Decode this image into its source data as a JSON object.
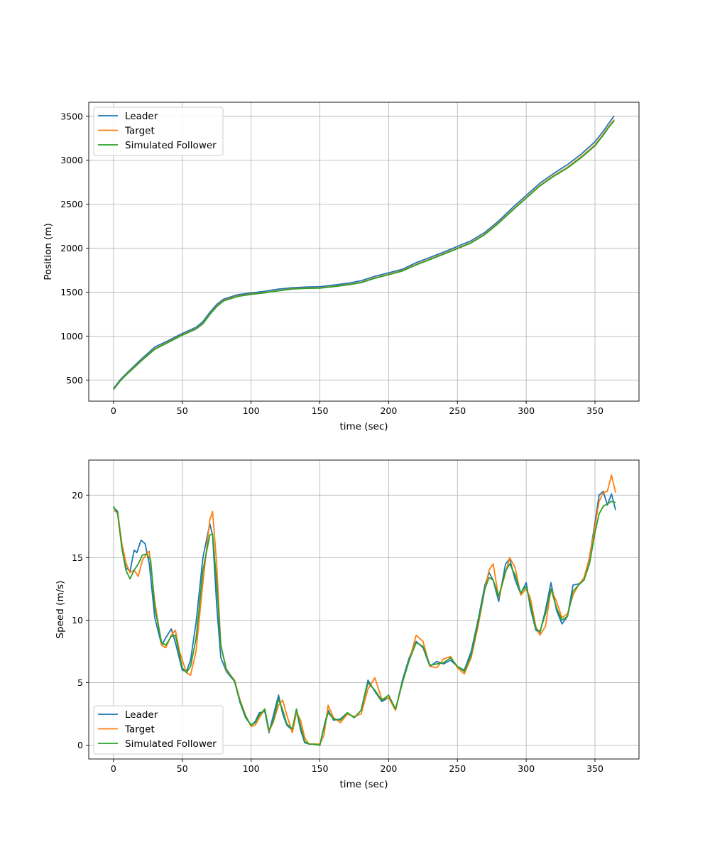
{
  "chart_data": [
    {
      "type": "line",
      "xlabel": "time (sec)",
      "ylabel": "Position (m)",
      "xlim": [
        -18,
        382
      ],
      "ylim": [
        260,
        3660
      ],
      "xticks": [
        0,
        50,
        100,
        150,
        200,
        250,
        300,
        350
      ],
      "yticks": [
        500,
        1000,
        1500,
        2000,
        2500,
        3000,
        3500
      ],
      "grid": true,
      "legend_position": "upper left",
      "series": [
        {
          "name": "Leader",
          "color": "#1f77b4",
          "x": [
            0,
            5,
            10,
            20,
            30,
            40,
            50,
            60,
            65,
            70,
            75,
            80,
            90,
            100,
            110,
            120,
            130,
            140,
            150,
            160,
            170,
            180,
            190,
            200,
            210,
            220,
            230,
            240,
            250,
            260,
            270,
            280,
            290,
            300,
            310,
            320,
            330,
            340,
            350,
            356,
            360,
            364
          ],
          "values": [
            405,
            505,
            585,
            735,
            875,
            950,
            1030,
            1100,
            1165,
            1270,
            1360,
            1420,
            1470,
            1490,
            1510,
            1535,
            1550,
            1558,
            1562,
            1580,
            1600,
            1630,
            1680,
            1720,
            1760,
            1835,
            1895,
            1955,
            2020,
            2085,
            2180,
            2310,
            2460,
            2600,
            2740,
            2850,
            2950,
            3070,
            3210,
            3330,
            3420,
            3505
          ]
        },
        {
          "name": "Target",
          "color": "#ff7f0e",
          "x": [
            0,
            5,
            10,
            20,
            30,
            40,
            50,
            60,
            65,
            70,
            75,
            80,
            90,
            100,
            110,
            120,
            130,
            140,
            150,
            160,
            170,
            180,
            190,
            200,
            210,
            220,
            230,
            240,
            250,
            260,
            270,
            280,
            290,
            300,
            310,
            320,
            330,
            340,
            350,
            356,
            360,
            364
          ],
          "values": [
            395,
            495,
            575,
            720,
            855,
            935,
            1015,
            1085,
            1145,
            1250,
            1340,
            1405,
            1455,
            1478,
            1495,
            1518,
            1538,
            1546,
            1548,
            1565,
            1585,
            1612,
            1662,
            1702,
            1745,
            1815,
            1875,
            1937,
            2000,
            2065,
            2160,
            2290,
            2435,
            2575,
            2715,
            2825,
            2920,
            3040,
            3175,
            3295,
            3385,
            3462
          ]
        },
        {
          "name": "Simulated Follower",
          "color": "#2ca02c",
          "x": [
            0,
            5,
            10,
            20,
            30,
            40,
            50,
            60,
            65,
            70,
            75,
            80,
            90,
            100,
            110,
            120,
            130,
            140,
            150,
            160,
            170,
            180,
            190,
            200,
            210,
            220,
            230,
            240,
            250,
            260,
            270,
            280,
            290,
            300,
            310,
            320,
            330,
            340,
            350,
            356,
            360,
            364
          ],
          "values": [
            392,
            492,
            570,
            715,
            850,
            930,
            1010,
            1080,
            1140,
            1245,
            1335,
            1400,
            1450,
            1475,
            1492,
            1515,
            1535,
            1543,
            1545,
            1562,
            1582,
            1608,
            1658,
            1698,
            1740,
            1810,
            1870,
            1932,
            1995,
            2060,
            2155,
            2285,
            2430,
            2570,
            2708,
            2818,
            2912,
            3030,
            3165,
            3285,
            3375,
            3450
          ]
        }
      ]
    },
    {
      "type": "line",
      "xlabel": "time (sec)",
      "ylabel": "Speed (m/s)",
      "xlim": [
        -18,
        382
      ],
      "ylim": [
        -1.1,
        22.8
      ],
      "xticks": [
        0,
        50,
        100,
        150,
        200,
        250,
        300,
        350
      ],
      "yticks": [
        0,
        5,
        10,
        15,
        20
      ],
      "grid": true,
      "legend_position": "lower left",
      "series": [
        {
          "name": "Leader",
          "color": "#1f77b4",
          "x": [
            0,
            3,
            6,
            9,
            12,
            15,
            17,
            20,
            23,
            26,
            30,
            35,
            38,
            42,
            45,
            50,
            53,
            56,
            60,
            65,
            70,
            72,
            75,
            78,
            82,
            88,
            92,
            96,
            100,
            103,
            106,
            110,
            113,
            116,
            120,
            123,
            126,
            130,
            133,
            136,
            139,
            142,
            145,
            150,
            153,
            156,
            160,
            165,
            170,
            175,
            180,
            185,
            190,
            195,
            200,
            205,
            210,
            215,
            220,
            225,
            230,
            235,
            240,
            245,
            250,
            255,
            260,
            265,
            270,
            273,
            276,
            280,
            285,
            288,
            292,
            296,
            300,
            303,
            307,
            310,
            314,
            318,
            322,
            326,
            330,
            334,
            338,
            342,
            346,
            350,
            353,
            356,
            359,
            362,
            365
          ],
          "values": [
            19.0,
            18.7,
            16.0,
            14.2,
            13.9,
            15.6,
            15.4,
            16.4,
            16.1,
            14.5,
            10.2,
            8.0,
            8.6,
            9.3,
            8.2,
            6.0,
            5.9,
            6.8,
            9.8,
            15.0,
            17.7,
            16.8,
            11.2,
            7.0,
            5.9,
            5.1,
            3.4,
            2.2,
            1.6,
            1.9,
            2.6,
            2.7,
            1.0,
            2.3,
            4.0,
            2.5,
            1.6,
            1.2,
            2.8,
            1.2,
            0.2,
            0.1,
            0.1,
            0.0,
            1.5,
            2.8,
            2.0,
            2.1,
            2.6,
            2.2,
            2.8,
            5.2,
            4.3,
            3.5,
            3.8,
            2.8,
            5.2,
            7.0,
            8.3,
            7.8,
            6.3,
            6.7,
            6.5,
            6.8,
            6.3,
            6.0,
            7.5,
            10.0,
            12.8,
            13.8,
            13.2,
            11.5,
            14.5,
            14.9,
            13.2,
            12.1,
            13.0,
            11.0,
            9.2,
            9.0,
            10.8,
            13.0,
            10.8,
            9.7,
            10.3,
            12.8,
            12.9,
            13.2,
            15.0,
            17.8,
            20.0,
            20.3,
            19.2,
            20.1,
            18.8
          ]
        },
        {
          "name": "Target",
          "color": "#ff7f0e",
          "x": [
            0,
            3,
            6,
            9,
            12,
            15,
            18,
            21,
            24,
            26,
            30,
            35,
            38,
            42,
            45,
            48,
            53,
            56,
            60,
            65,
            70,
            72,
            75,
            78,
            82,
            88,
            92,
            96,
            100,
            103,
            106,
            110,
            113,
            116,
            120,
            123,
            126,
            130,
            133,
            136,
            139,
            142,
            145,
            150,
            153,
            156,
            160,
            165,
            170,
            175,
            180,
            185,
            190,
            195,
            200,
            205,
            210,
            215,
            220,
            225,
            230,
            235,
            240,
            245,
            250,
            255,
            260,
            265,
            270,
            273,
            276,
            280,
            285,
            288,
            292,
            296,
            300,
            303,
            307,
            310,
            314,
            318,
            322,
            326,
            330,
            334,
            338,
            342,
            346,
            350,
            353,
            356,
            359,
            362,
            365
          ],
          "values": [
            18.8,
            18.6,
            16.2,
            14.6,
            13.8,
            14.0,
            13.5,
            14.8,
            15.3,
            15.5,
            11.5,
            8.0,
            7.8,
            8.8,
            9.2,
            7.5,
            5.8,
            5.6,
            7.5,
            13.0,
            18.0,
            18.7,
            14.5,
            8.0,
            6.0,
            5.2,
            3.6,
            2.4,
            1.5,
            1.6,
            2.2,
            2.9,
            1.1,
            1.8,
            3.2,
            3.6,
            2.4,
            1.0,
            2.6,
            2.0,
            0.6,
            0.1,
            0.1,
            0.1,
            0.8,
            3.2,
            2.2,
            1.8,
            2.5,
            2.3,
            2.5,
            4.5,
            5.4,
            3.7,
            3.8,
            2.8,
            5.0,
            6.8,
            8.8,
            8.3,
            6.3,
            6.2,
            6.9,
            7.1,
            6.2,
            5.7,
            7.0,
            9.5,
            12.5,
            14.0,
            14.5,
            11.8,
            13.8,
            15.0,
            14.2,
            12.0,
            12.5,
            11.8,
            9.5,
            8.8,
            9.5,
            12.5,
            11.5,
            10.2,
            10.5,
            12.0,
            12.8,
            13.4,
            15.0,
            17.5,
            19.5,
            20.2,
            20.3,
            21.6,
            20.2
          ]
        },
        {
          "name": "Simulated Follower",
          "color": "#2ca02c",
          "x": [
            0,
            3,
            6,
            9,
            12,
            15,
            18,
            21,
            24,
            27,
            30,
            35,
            38,
            42,
            45,
            50,
            53,
            56,
            60,
            65,
            70,
            72,
            75,
            78,
            82,
            88,
            92,
            96,
            100,
            103,
            106,
            110,
            113,
            116,
            120,
            123,
            126,
            130,
            133,
            136,
            139,
            142,
            145,
            150,
            153,
            156,
            160,
            165,
            170,
            175,
            180,
            185,
            190,
            195,
            200,
            205,
            210,
            215,
            220,
            225,
            230,
            235,
            240,
            245,
            250,
            255,
            260,
            265,
            270,
            273,
            276,
            280,
            285,
            288,
            292,
            296,
            300,
            303,
            307,
            310,
            314,
            318,
            322,
            326,
            330,
            334,
            338,
            342,
            346,
            350,
            353,
            356,
            359,
            362,
            365
          ],
          "values": [
            19.1,
            18.5,
            15.8,
            14.0,
            13.3,
            14.0,
            14.5,
            15.2,
            15.3,
            14.8,
            11.0,
            8.2,
            8.0,
            8.7,
            8.8,
            6.2,
            5.8,
            6.3,
            8.5,
            14.0,
            16.8,
            16.9,
            13.0,
            8.0,
            6.1,
            5.1,
            3.5,
            2.3,
            1.6,
            1.8,
            2.4,
            2.9,
            1.2,
            1.9,
            3.7,
            2.8,
            1.7,
            1.3,
            2.9,
            1.5,
            0.3,
            0.1,
            0.1,
            0.0,
            1.4,
            2.6,
            2.1,
            2.0,
            2.6,
            2.2,
            2.8,
            5.0,
            4.4,
            3.6,
            4.0,
            2.9,
            5.0,
            6.8,
            8.2,
            7.9,
            6.4,
            6.5,
            6.6,
            7.0,
            6.3,
            5.9,
            7.2,
            9.8,
            12.5,
            13.4,
            13.2,
            11.9,
            13.9,
            14.5,
            13.6,
            12.2,
            12.7,
            11.3,
            9.3,
            9.1,
            10.5,
            12.5,
            11.0,
            10.0,
            10.3,
            12.3,
            12.8,
            13.2,
            14.5,
            17.0,
            18.5,
            19.1,
            19.3,
            19.5,
            19.4
          ]
        }
      ]
    }
  ]
}
